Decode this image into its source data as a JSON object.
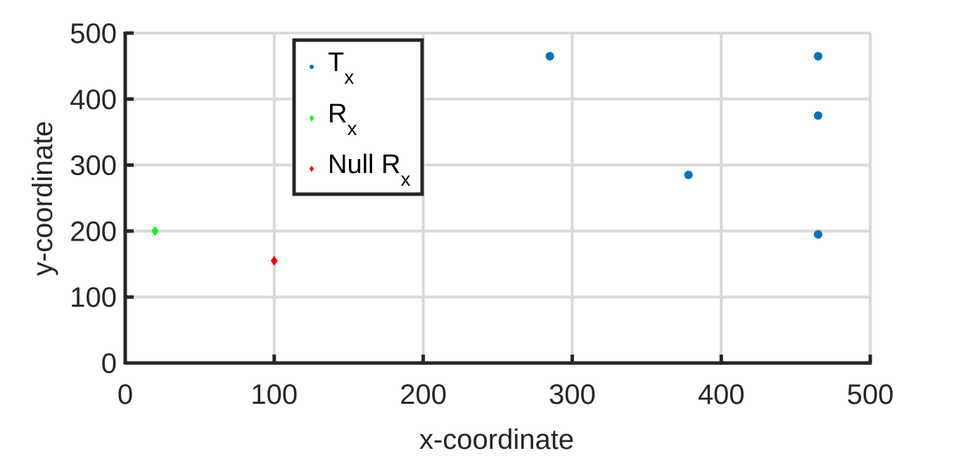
{
  "chart_data": {
    "type": "scatter",
    "xlabel": "x-coordinate",
    "ylabel": "y-coordinate",
    "xlim": [
      0,
      500
    ],
    "ylim": [
      0,
      500
    ],
    "xticks": [
      0,
      100,
      200,
      300,
      400,
      500
    ],
    "yticks": [
      0,
      100,
      200,
      300,
      400,
      500
    ],
    "grid": true,
    "legend_position": "top-left",
    "series": [
      {
        "name": "Tx",
        "name_main": "T",
        "name_sub": "x",
        "marker": "circle",
        "color": "#0072BD",
        "points": [
          [
            285,
            465
          ],
          [
            465,
            465
          ],
          [
            465,
            375
          ],
          [
            378,
            285
          ],
          [
            465,
            195
          ]
        ]
      },
      {
        "name": "Rx",
        "name_main": "R",
        "name_sub": "x",
        "marker": "diamond",
        "color": "#00FF00",
        "points": [
          [
            20,
            200
          ]
        ]
      },
      {
        "name": "Null Rx",
        "name_main": "Null R",
        "name_sub": "x",
        "marker": "diamond",
        "color": "#FF0000",
        "points": [
          [
            100,
            155
          ]
        ]
      }
    ]
  }
}
